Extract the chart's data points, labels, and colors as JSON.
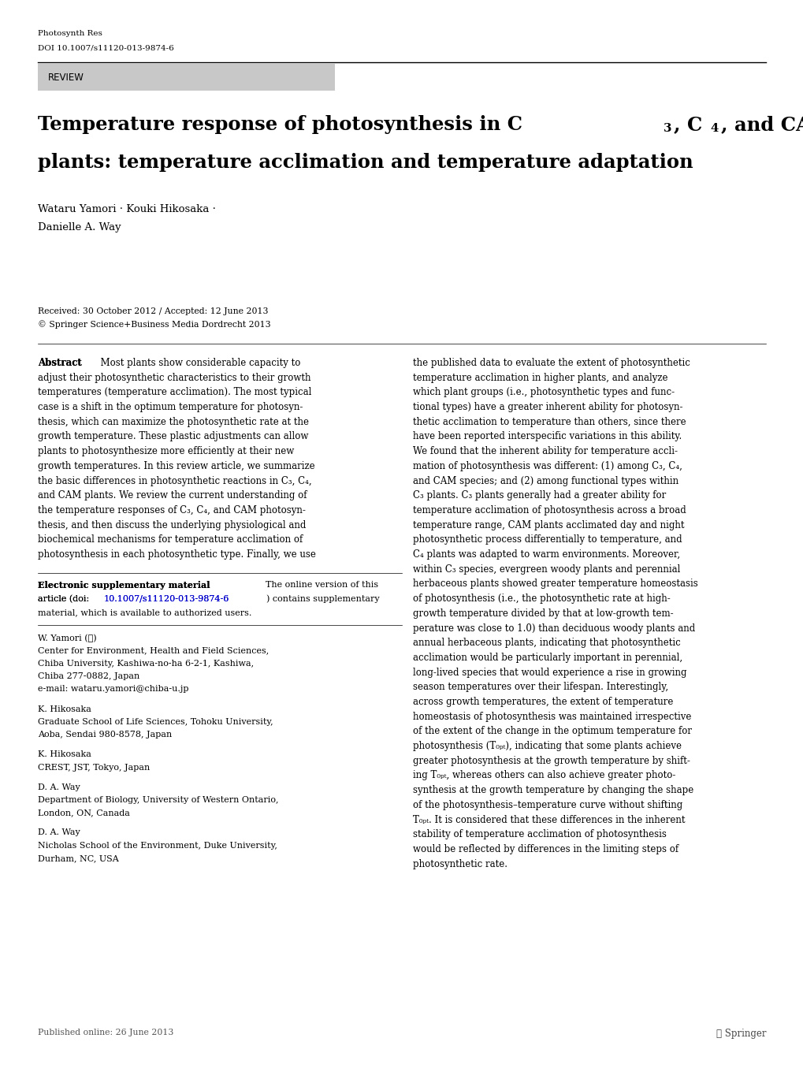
{
  "background_color": "#ffffff",
  "page_width": 10.2,
  "page_height": 13.55,
  "journal_name": "Photosynth Res",
  "doi": "DOI 10.1007/s11120-013-9874-6",
  "review_label": "REVIEW",
  "review_box_color": "#c8c8c8",
  "title_line2": "plants: temperature acclimation and temperature adaptation",
  "authors_line1": "Wataru Yamori · Kouki Hikosaka ·",
  "authors_line2": "Danielle A. Way",
  "received_line": "Received: 30 October 2012 / Accepted: 12 June 2013",
  "copyright_line": "© Springer Science+Business Media Dordrecht 2013",
  "abstract_col1_lines": [
    "Abstract  Most plants show considerable capacity to",
    "adjust their photosynthetic characteristics to their growth",
    "temperatures (temperature acclimation). The most typical",
    "case is a shift in the optimum temperature for photosyn-",
    "thesis, which can maximize the photosynthetic rate at the",
    "growth temperature. These plastic adjustments can allow",
    "plants to photosynthesize more efficiently at their new",
    "growth temperatures. In this review article, we summarize",
    "the basic differences in photosynthetic reactions in C₃, C₄,",
    "and CAM plants. We review the current understanding of",
    "the temperature responses of C₃, C₄, and CAM photosyn-",
    "thesis, and then discuss the underlying physiological and",
    "biochemical mechanisms for temperature acclimation of",
    "photosynthesis in each photosynthetic type. Finally, we use"
  ],
  "abstract_col2_lines": [
    "the published data to evaluate the extent of photosynthetic",
    "temperature acclimation in higher plants, and analyze",
    "which plant groups (i.e., photosynthetic types and func-",
    "tional types) have a greater inherent ability for photosyn-",
    "thetic acclimation to temperature than others, since there",
    "have been reported interspecific variations in this ability.",
    "We found that the inherent ability for temperature accli-",
    "mation of photosynthesis was different: (1) among C₃, C₄,",
    "and CAM species; and (2) among functional types within",
    "C₃ plants. C₃ plants generally had a greater ability for",
    "temperature acclimation of photosynthesis across a broad",
    "temperature range, CAM plants acclimated day and night",
    "photosynthetic process differentially to temperature, and",
    "C₄ plants was adapted to warm environments. Moreover,",
    "within C₃ species, evergreen woody plants and perennial",
    "herbaceous plants showed greater temperature homeostasis",
    "of photosynthesis (i.e., the photosynthetic rate at high-",
    "growth temperature divided by that at low-growth tem-",
    "perature was close to 1.0) than deciduous woody plants and",
    "annual herbaceous plants, indicating that photosynthetic",
    "acclimation would be particularly important in perennial,",
    "long-lived species that would experience a rise in growing",
    "season temperatures over their lifespan. Interestingly,",
    "across growth temperatures, the extent of temperature",
    "homeostasis of photosynthesis was maintained irrespective",
    "of the extent of the change in the optimum temperature for",
    "photosynthesis (T₀ₚₜ), indicating that some plants achieve",
    "greater photosynthesis at the growth temperature by shift-",
    "ing T₀ₚₜ, whereas others can also achieve greater photo-",
    "synthesis at the growth temperature by changing the shape",
    "of the photosynthesis–temperature curve without shifting",
    "T₀ₚₜ. It is considered that these differences in the inherent",
    "stability of temperature acclimation of photosynthesis",
    "would be reflected by differences in the limiting steps of",
    "photosynthetic rate."
  ],
  "esm_bold": "Electronic supplementary material",
  "esm_lines": [
    "Electronic supplementary material  The online version of this",
    "article (doi:10.1007/s11120-013-9874-6) contains supplementary",
    "material, which is available to authorized users."
  ],
  "esm_link": "10.1007/s11120-013-9874-6",
  "affiliations": [
    {
      "author": "W. Yamori (✉)",
      "lines": [
        "Center for Environment, Health and Field Sciences,",
        "Chiba University, Kashiwa-no-ha 6-2-1, Kashiwa,",
        "Chiba 277-0882, Japan",
        "e-mail: wataru.yamori@chiba-u.jp"
      ]
    },
    {
      "author": "K. Hikosaka",
      "lines": [
        "Graduate School of Life Sciences, Tohoku University,",
        "Aoba, Sendai 980-8578, Japan"
      ]
    },
    {
      "author": "K. Hikosaka",
      "lines": [
        "CREST, JST, Tokyo, Japan"
      ]
    },
    {
      "author": "D. A. Way",
      "lines": [
        "Department of Biology, University of Western Ontario,",
        "London, ON, Canada"
      ]
    },
    {
      "author": "D. A. Way",
      "lines": [
        "Nicholas School of the Environment, Duke University,",
        "Durham, NC, USA"
      ]
    }
  ],
  "published_online": "Published online: 26 June 2013",
  "springer_logo": "⑂ Springer"
}
